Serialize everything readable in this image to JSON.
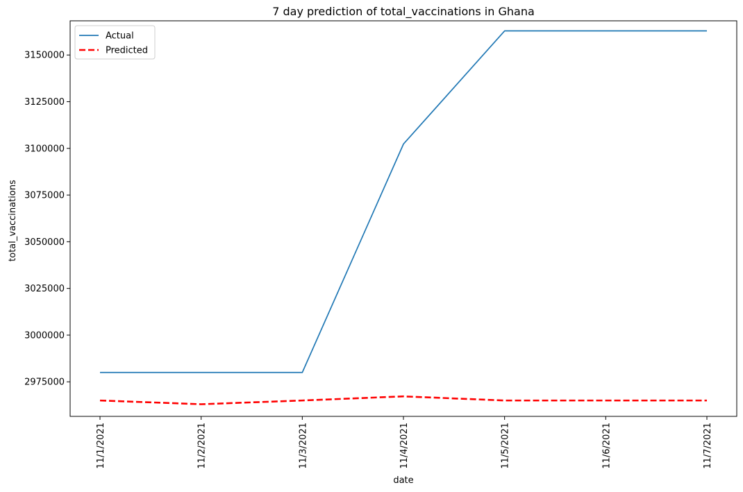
{
  "chart_data": {
    "type": "line",
    "title": "7 day prediction of total_vaccinations in Ghana",
    "xlabel": "date",
    "ylabel": "total_vaccinations",
    "categories": [
      "11/1/2021",
      "11/2/2021",
      "11/3/2021",
      "11/4/2021",
      "11/5/2021",
      "11/6/2021",
      "11/7/2021"
    ],
    "yticks": [
      2975000,
      3000000,
      3025000,
      3050000,
      3075000,
      3100000,
      3125000,
      3150000
    ],
    "ylim": [
      2956500,
      3168300
    ],
    "grid": false,
    "legend_position": "top-left",
    "series": [
      {
        "name": "Actual",
        "color": "#1f77b4",
        "style": "solid",
        "values": [
          2980000,
          2980000,
          2980000,
          3102300,
          3162900,
          3162900,
          3162900
        ]
      },
      {
        "name": "Predicted",
        "color": "#ff0000",
        "style": "dashed",
        "values": [
          2965000,
          2963000,
          2965000,
          2967200,
          2965000,
          2965000,
          2965000
        ]
      }
    ]
  }
}
